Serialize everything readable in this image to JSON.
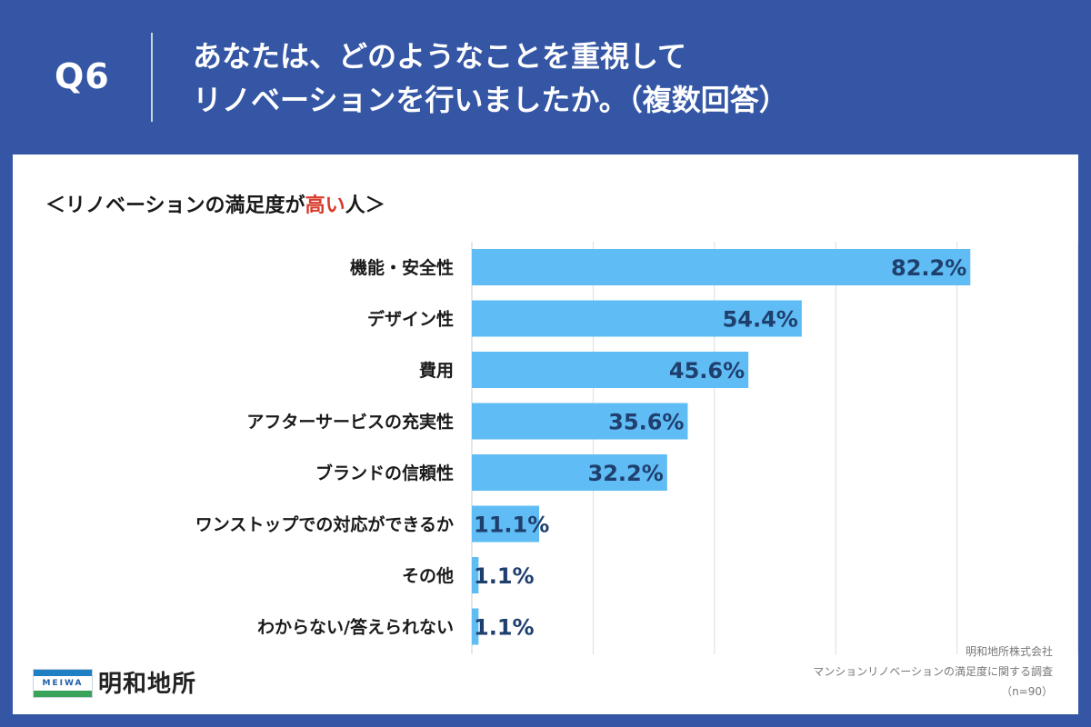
{
  "header": {
    "question_number": "Q6",
    "question_line1": "あなたは、どのようなことを重視して",
    "question_line2": "リノベーションを行いましたか。（複数回答）"
  },
  "subtitle": {
    "prefix": "＜リノベーションの満足度が",
    "highlight": "高い",
    "suffix": "人＞"
  },
  "colors": {
    "header_bg": "#3456a4",
    "bar": "#5fbcf4",
    "value_text": "#1f3f6e",
    "highlight": "#d93a2b",
    "gridline": "#dddddd"
  },
  "chart_data": {
    "type": "bar",
    "orientation": "horizontal",
    "title": "＜リノベーションの満足度が高い人＞",
    "categories": [
      "機能・安全性",
      "デザイン性",
      "費用",
      "アフターサービスの充実性",
      "ブランドの信頼性",
      "ワンストップでの対応ができるか",
      "その他",
      "わからない/答えられない"
    ],
    "values": [
      82.2,
      54.4,
      45.6,
      35.6,
      32.2,
      11.1,
      1.1,
      1.1
    ],
    "value_labels": [
      "82.2%",
      "54.4%",
      "45.6%",
      "35.6%",
      "32.2%",
      "11.1%",
      "1.1%",
      "1.1%"
    ],
    "unit": "%",
    "xlim": [
      0,
      100
    ],
    "grid_step": 20,
    "grid": true
  },
  "logo": {
    "wordmark": "MEIWA",
    "name": "明和地所"
  },
  "source": {
    "company": "明和地所株式会社",
    "survey": "マンションリノベーションの満足度に関する調査",
    "sample": "（n=90）"
  }
}
